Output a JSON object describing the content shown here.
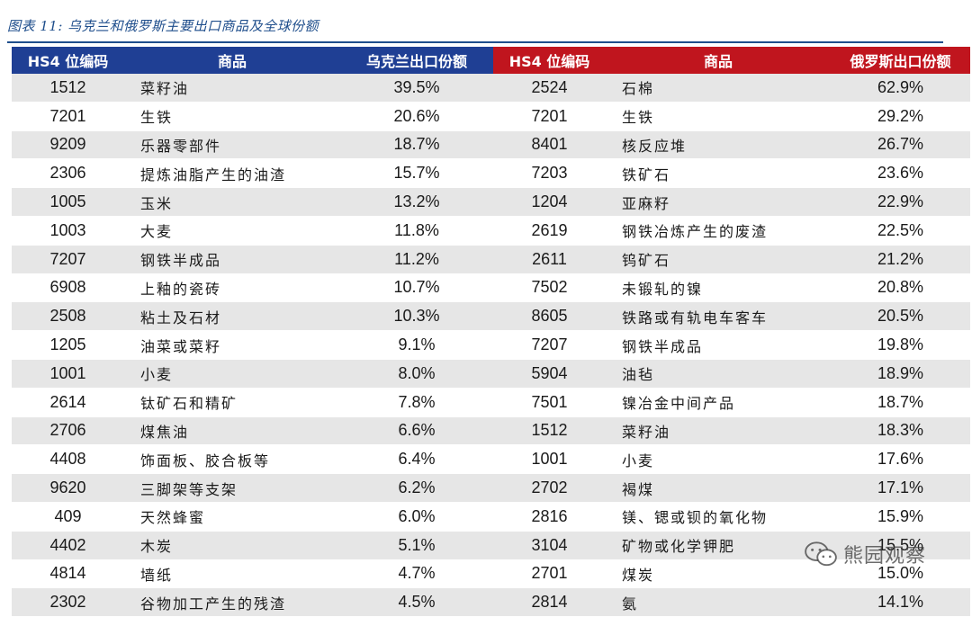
{
  "figure_title": "图表 11:  乌克兰和俄罗斯主要出口商品及全球份额",
  "headers": {
    "ua_code": "HS4 位编码",
    "ua_product": "商品",
    "ua_share": "乌克兰出口份额",
    "ru_code": "HS4 位编码",
    "ru_product": "商品",
    "ru_share": "俄罗斯出口份额"
  },
  "rows": [
    {
      "ua_code": "1512",
      "ua_product": "菜籽油",
      "ua_share": "39.5%",
      "ru_code": "2524",
      "ru_product": "石棉",
      "ru_share": "62.9%"
    },
    {
      "ua_code": "7201",
      "ua_product": "生铁",
      "ua_share": "20.6%",
      "ru_code": "7201",
      "ru_product": "生铁",
      "ru_share": "29.2%"
    },
    {
      "ua_code": "9209",
      "ua_product": "乐器零部件",
      "ua_share": "18.7%",
      "ru_code": "8401",
      "ru_product": "核反应堆",
      "ru_share": "26.7%"
    },
    {
      "ua_code": "2306",
      "ua_product": "提炼油脂产生的油渣",
      "ua_share": "15.7%",
      "ru_code": "7203",
      "ru_product": "铁矿石",
      "ru_share": "23.6%"
    },
    {
      "ua_code": "1005",
      "ua_product": "玉米",
      "ua_share": "13.2%",
      "ru_code": "1204",
      "ru_product": "亚麻籽",
      "ru_share": "22.9%"
    },
    {
      "ua_code": "1003",
      "ua_product": "大麦",
      "ua_share": "11.8%",
      "ru_code": "2619",
      "ru_product": "钢铁冶炼产生的废渣",
      "ru_share": "22.5%"
    },
    {
      "ua_code": "7207",
      "ua_product": "钢铁半成品",
      "ua_share": "11.2%",
      "ru_code": "2611",
      "ru_product": "钨矿石",
      "ru_share": "21.2%"
    },
    {
      "ua_code": "6908",
      "ua_product": "上釉的瓷砖",
      "ua_share": "10.7%",
      "ru_code": "7502",
      "ru_product": "未锻轧的镍",
      "ru_share": "20.8%"
    },
    {
      "ua_code": "2508",
      "ua_product": "粘土及石材",
      "ua_share": "10.3%",
      "ru_code": "8605",
      "ru_product": "铁路或有轨电车客车",
      "ru_share": "20.5%"
    },
    {
      "ua_code": "1205",
      "ua_product": "油菜或菜籽",
      "ua_share": "9.1%",
      "ru_code": "7207",
      "ru_product": "钢铁半成品",
      "ru_share": "19.8%"
    },
    {
      "ua_code": "1001",
      "ua_product": "小麦",
      "ua_share": "8.0%",
      "ru_code": "5904",
      "ru_product": "油毡",
      "ru_share": "18.9%"
    },
    {
      "ua_code": "2614",
      "ua_product": "钛矿石和精矿",
      "ua_share": "7.8%",
      "ru_code": "7501",
      "ru_product": "镍冶金中间产品",
      "ru_share": "18.7%"
    },
    {
      "ua_code": "2706",
      "ua_product": "煤焦油",
      "ua_share": "6.6%",
      "ru_code": "1512",
      "ru_product": "菜籽油",
      "ru_share": "18.3%"
    },
    {
      "ua_code": "4408",
      "ua_product": "饰面板、胶合板等",
      "ua_share": "6.4%",
      "ru_code": "1001",
      "ru_product": "小麦",
      "ru_share": "17.6%"
    },
    {
      "ua_code": "9620",
      "ua_product": "三脚架等支架",
      "ua_share": "6.2%",
      "ru_code": "2702",
      "ru_product": "褐煤",
      "ru_share": "17.1%"
    },
    {
      "ua_code": "409",
      "ua_product": "天然蜂蜜",
      "ua_share": "6.0%",
      "ru_code": "2816",
      "ru_product": "镁、锶或钡的氧化物",
      "ru_share": "15.9%"
    },
    {
      "ua_code": "4402",
      "ua_product": "木炭",
      "ua_share": "5.1%",
      "ru_code": "3104",
      "ru_product": "矿物或化学钾肥",
      "ru_share": "15.5%"
    },
    {
      "ua_code": "4814",
      "ua_product": "墙纸",
      "ua_share": "4.7%",
      "ru_code": "2701",
      "ru_product": "煤炭",
      "ru_share": "15.0%"
    },
    {
      "ua_code": "2302",
      "ua_product": "谷物加工产生的残渣",
      "ua_share": "4.5%",
      "ru_code": "2814",
      "ru_product": "氨",
      "ru_share": "14.1%"
    }
  ],
  "watermark": {
    "text": "熊园观察",
    "icon": "wechat-icon"
  },
  "colors": {
    "title": "#1f4e8c",
    "ua_header": "#1f3f94",
    "ru_header": "#c0151e",
    "stripe": "#e6e6e6"
  }
}
